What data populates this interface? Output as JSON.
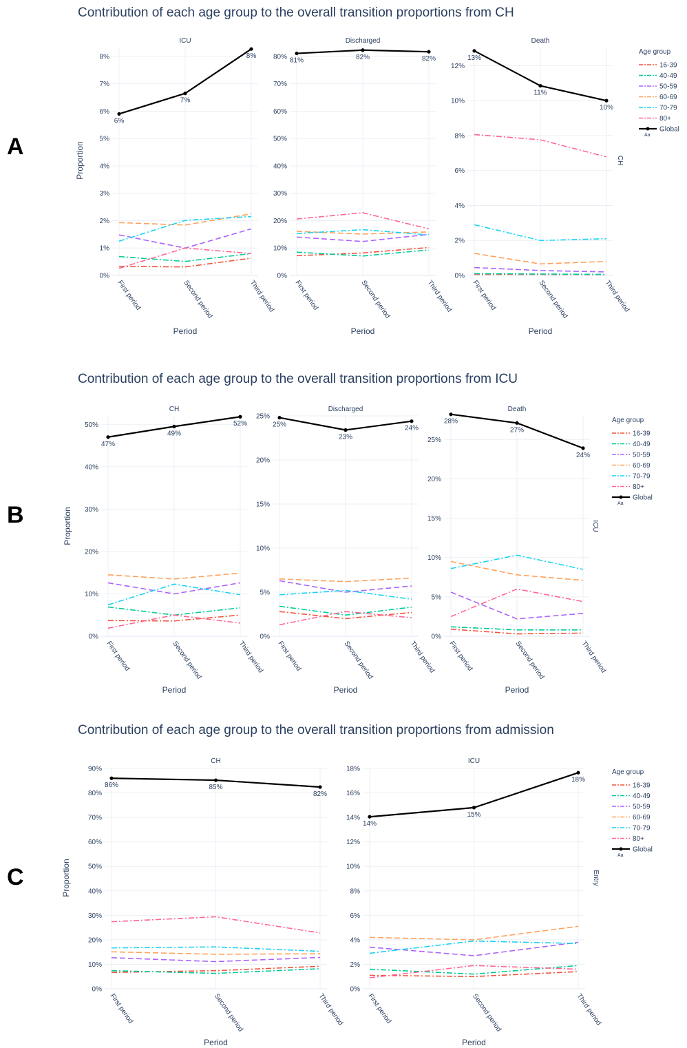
{
  "chart_data": [
    {
      "type": "line",
      "panel_letter": "A",
      "title": "Contribution of each age group to the overall transition proportions from CH",
      "row_label": "CH",
      "ylabel": "Proportion",
      "xlabel": "Period",
      "categories": [
        "First period",
        "Second period",
        "Third period"
      ],
      "legend_title": "Age group",
      "legend_marker": "Aa",
      "legend_position": "right",
      "facets": [
        {
          "name": "ICU",
          "ylim": [
            0,
            0.083
          ],
          "yticks": [
            0,
            0.01,
            0.02,
            0.03,
            0.04,
            0.05,
            0.06,
            0.07,
            0.08
          ],
          "ytick_labels": [
            "0%",
            "1%",
            "2%",
            "3%",
            "4%",
            "5%",
            "6%",
            "7%",
            "8%"
          ],
          "series": [
            {
              "name": "16-39",
              "values": [
                0.0033,
                0.0031,
                0.0063
              ]
            },
            {
              "name": "40-49",
              "values": [
                0.0069,
                0.0051,
                0.008
              ]
            },
            {
              "name": "50-59",
              "values": [
                0.0148,
                0.01,
                0.017
              ]
            },
            {
              "name": "60-69",
              "values": [
                0.0193,
                0.0184,
                0.0225
              ]
            },
            {
              "name": "70-79",
              "values": [
                0.0125,
                0.0201,
                0.0215
              ]
            },
            {
              "name": "80+",
              "values": [
                0.0026,
                0.01,
                0.008
              ]
            },
            {
              "name": "Global",
              "values": [
                0.059,
                0.0665,
                0.0827
              ]
            }
          ],
          "global_labels": [
            "6%",
            "7%",
            "8%"
          ]
        },
        {
          "name": "Discharged",
          "ylim": [
            0,
            0.83
          ],
          "yticks": [
            0,
            0.1,
            0.2,
            0.3,
            0.4,
            0.5,
            0.6,
            0.7,
            0.8
          ],
          "ytick_labels": [
            "0%",
            "10%",
            "20%",
            "30%",
            "40%",
            "50%",
            "60%",
            "70%",
            "80%"
          ],
          "series": [
            {
              "name": "16-39",
              "values": [
                0.072,
                0.082,
                0.102
              ]
            },
            {
              "name": "40-49",
              "values": [
                0.085,
                0.071,
                0.093
              ]
            },
            {
              "name": "50-59",
              "values": [
                0.14,
                0.124,
                0.15
              ]
            },
            {
              "name": "60-69",
              "values": [
                0.161,
                0.151,
                0.159
              ]
            },
            {
              "name": "70-79",
              "values": [
                0.153,
                0.167,
                0.148
              ]
            },
            {
              "name": "80+",
              "values": [
                0.206,
                0.229,
                0.17
              ]
            },
            {
              "name": "Global",
              "values": [
                0.811,
                0.823,
                0.817
              ]
            }
          ],
          "global_labels": [
            "81%",
            "82%",
            "82%"
          ]
        },
        {
          "name": "Death",
          "ylim": [
            0,
            0.13
          ],
          "yticks": [
            0,
            0.02,
            0.04,
            0.06,
            0.08,
            0.1,
            0.12
          ],
          "ytick_labels": [
            "0%",
            "2%",
            "4%",
            "6%",
            "8%",
            "10%",
            "12%"
          ],
          "series": [
            {
              "name": "16-39",
              "values": [
                0.0006,
                0.0006,
                0.0005
              ]
            },
            {
              "name": "40-49",
              "values": [
                0.001,
                0.0008,
                0.0006
              ]
            },
            {
              "name": "50-59",
              "values": [
                0.0045,
                0.0028,
                0.002
              ]
            },
            {
              "name": "60-69",
              "values": [
                0.0126,
                0.0066,
                0.008
              ]
            },
            {
              "name": "70-79",
              "values": [
                0.029,
                0.02,
                0.021
              ]
            },
            {
              "name": "80+",
              "values": [
                0.0806,
                0.0776,
                0.0678
              ]
            },
            {
              "name": "Global",
              "values": [
                0.1285,
                0.1085,
                0.1
              ]
            }
          ],
          "global_labels": [
            "13%",
            "11%",
            "10%"
          ]
        }
      ]
    },
    {
      "type": "line",
      "panel_letter": "B",
      "title": "Contribution of each age group to the overall transition proportions from ICU",
      "row_label": "ICU",
      "ylabel": "Proportion",
      "xlabel": "Period",
      "categories": [
        "First period",
        "Second period",
        "Third period"
      ],
      "legend_title": "Age group",
      "legend_marker": "Aa",
      "legend_position": "right",
      "facets": [
        {
          "name": "CH",
          "ylim": [
            0,
            0.52
          ],
          "yticks": [
            0,
            0.1,
            0.2,
            0.3,
            0.4,
            0.5
          ],
          "ytick_labels": [
            "0%",
            "10%",
            "20%",
            "30%",
            "40%",
            "50%"
          ],
          "series": [
            {
              "name": "16-39",
              "values": [
                0.037,
                0.036,
                0.05
              ]
            },
            {
              "name": "40-49",
              "values": [
                0.069,
                0.05,
                0.067
              ]
            },
            {
              "name": "50-59",
              "values": [
                0.126,
                0.1,
                0.126
              ]
            },
            {
              "name": "60-69",
              "values": [
                0.145,
                0.135,
                0.149
              ]
            },
            {
              "name": "70-79",
              "values": [
                0.074,
                0.123,
                0.098
              ]
            },
            {
              "name": "80+",
              "values": [
                0.019,
                0.05,
                0.031
              ]
            },
            {
              "name": "Global",
              "values": [
                0.47,
                0.495,
                0.518
              ]
            }
          ],
          "global_labels": [
            "47%",
            "49%",
            "52%"
          ]
        },
        {
          "name": "Discharged",
          "ylim": [
            0,
            0.25
          ],
          "yticks": [
            0,
            0.05,
            0.1,
            0.15,
            0.2,
            0.25
          ],
          "ytick_labels": [
            "0%",
            "5%",
            "10%",
            "15%",
            "20%",
            "25%"
          ],
          "series": [
            {
              "name": "16-39",
              "values": [
                0.028,
                0.02,
                0.027
              ]
            },
            {
              "name": "40-49",
              "values": [
                0.034,
                0.024,
                0.033
              ]
            },
            {
              "name": "50-59",
              "values": [
                0.063,
                0.05,
                0.057
              ]
            },
            {
              "name": "60-69",
              "values": [
                0.065,
                0.062,
                0.066
              ]
            },
            {
              "name": "70-79",
              "values": [
                0.047,
                0.052,
                0.042
              ]
            },
            {
              "name": "80+",
              "values": [
                0.013,
                0.028,
                0.021
              ]
            },
            {
              "name": "Global",
              "values": [
                0.248,
                0.234,
                0.244
              ]
            }
          ],
          "global_labels": [
            "25%",
            "23%",
            "24%"
          ]
        },
        {
          "name": "Death",
          "ylim": [
            0,
            0.28
          ],
          "yticks": [
            0,
            0.05,
            0.1,
            0.15,
            0.2,
            0.25
          ],
          "ytick_labels": [
            "0%",
            "5%",
            "10%",
            "15%",
            "20%",
            "25%"
          ],
          "series": [
            {
              "name": "16-39",
              "values": [
                0.009,
                0.003,
                0.004
              ]
            },
            {
              "name": "40-49",
              "values": [
                0.012,
                0.008,
                0.008
              ]
            },
            {
              "name": "50-59",
              "values": [
                0.056,
                0.022,
                0.029
              ]
            },
            {
              "name": "60-69",
              "values": [
                0.095,
                0.078,
                0.071
              ]
            },
            {
              "name": "70-79",
              "values": [
                0.086,
                0.103,
                0.085
              ]
            },
            {
              "name": "80+",
              "values": [
                0.025,
                0.06,
                0.044
              ]
            },
            {
              "name": "Global",
              "values": [
                0.282,
                0.271,
                0.239
              ]
            }
          ],
          "global_labels": [
            "28%",
            "27%",
            "24%"
          ]
        }
      ]
    },
    {
      "type": "line",
      "panel_letter": "C",
      "title": "Contribution of each age group to the overall transition proportions from admission",
      "row_label": "Entry",
      "ylabel": "Proportion",
      "xlabel": "Period",
      "categories": [
        "First period",
        "Second period",
        "Third period"
      ],
      "legend_title": "Age group",
      "legend_marker": "Aa",
      "legend_position": "right",
      "facets": [
        {
          "name": "CH",
          "ylim": [
            0,
            0.9
          ],
          "yticks": [
            0,
            0.1,
            0.2,
            0.3,
            0.4,
            0.5,
            0.6,
            0.7,
            0.8,
            0.9
          ],
          "ytick_labels": [
            "0%",
            "10%",
            "20%",
            "30%",
            "40%",
            "50%",
            "60%",
            "70%",
            "80%",
            "90%"
          ],
          "series": [
            {
              "name": "16-39",
              "values": [
                0.067,
                0.074,
                0.092
              ]
            },
            {
              "name": "40-49",
              "values": [
                0.074,
                0.063,
                0.082
              ]
            },
            {
              "name": "50-59",
              "values": [
                0.127,
                0.111,
                0.128
              ]
            },
            {
              "name": "60-69",
              "values": [
                0.151,
                0.141,
                0.143
              ]
            },
            {
              "name": "70-79",
              "values": [
                0.167,
                0.171,
                0.153
              ]
            },
            {
              "name": "80+",
              "values": [
                0.274,
                0.294,
                0.228
              ]
            },
            {
              "name": "Global",
              "values": [
                0.86,
                0.852,
                0.824
              ]
            }
          ],
          "global_labels": [
            "86%",
            "85%",
            "82%"
          ]
        },
        {
          "name": "ICU",
          "ylim": [
            0,
            0.18
          ],
          "yticks": [
            0,
            0.02,
            0.04,
            0.06,
            0.08,
            0.1,
            0.12,
            0.14,
            0.16,
            0.18
          ],
          "ytick_labels": [
            "0%",
            "2%",
            "4%",
            "6%",
            "8%",
            "10%",
            "12%",
            "14%",
            "16%",
            "18%"
          ],
          "series": [
            {
              "name": "16-39",
              "values": [
                0.011,
                0.01,
                0.014
              ]
            },
            {
              "name": "40-49",
              "values": [
                0.016,
                0.012,
                0.019
              ]
            },
            {
              "name": "50-59",
              "values": [
                0.034,
                0.027,
                0.038
              ]
            },
            {
              "name": "60-69",
              "values": [
                0.042,
                0.04,
                0.051
              ]
            },
            {
              "name": "70-79",
              "values": [
                0.029,
                0.039,
                0.037
              ]
            },
            {
              "name": "80+",
              "values": [
                0.009,
                0.019,
                0.016
              ]
            },
            {
              "name": "Global",
              "values": [
                0.1405,
                0.148,
                0.1765
              ]
            }
          ],
          "global_labels": [
            "14%",
            "15%",
            "18%"
          ]
        }
      ]
    }
  ],
  "series_styles": {
    "16-39": "#ef553b",
    "40-49": "#00cc96",
    "50-59": "#ab63fa",
    "60-69": "#ffa15a",
    "70-79": "#19d3f3",
    "80+": "#ff6692",
    "Global": "#000000"
  }
}
